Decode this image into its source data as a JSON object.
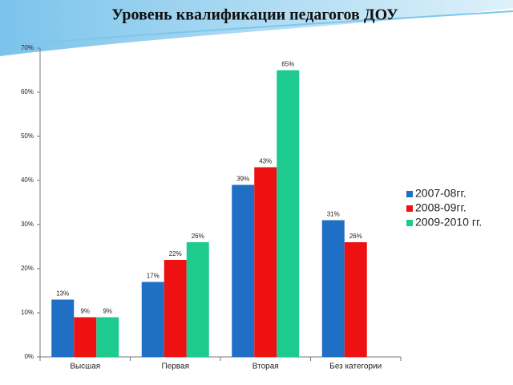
{
  "chart_data": {
    "type": "bar",
    "title": "Уровень квалификации педагогов ДОУ",
    "categories": [
      "Высшая",
      "Первая",
      "Вторая",
      "Без категории"
    ],
    "series": [
      {
        "name": "2007-08гг.",
        "color": "#1f6fc5",
        "values": [
          13,
          17,
          39,
          31
        ],
        "value_labels": [
          "13%",
          "17%",
          "39%",
          "31%"
        ]
      },
      {
        "name": "2008-09гг.",
        "color": "#ee1111",
        "values": [
          9,
          22,
          43,
          26
        ],
        "value_labels": [
          "9%",
          "22%",
          "43%",
          "26%"
        ]
      },
      {
        "name": "2009-2010 гг.",
        "color": "#1ecb8f",
        "values": [
          9,
          26,
          65,
          null
        ],
        "value_labels": [
          "9%",
          "26%",
          "65%",
          null
        ]
      }
    ],
    "ylim": [
      0,
      70
    ],
    "yticks": [
      {
        "value": 0,
        "label": "0%"
      },
      {
        "value": 10,
        "label": "10%"
      },
      {
        "value": 20,
        "label": "20%"
      },
      {
        "value": 30,
        "label": "30%"
      },
      {
        "value": 40,
        "label": "40%"
      },
      {
        "value": 50,
        "label": "50%"
      },
      {
        "value": 60,
        "label": "60%"
      },
      {
        "value": 70,
        "label": "70%"
      }
    ],
    "legend": "right"
  }
}
